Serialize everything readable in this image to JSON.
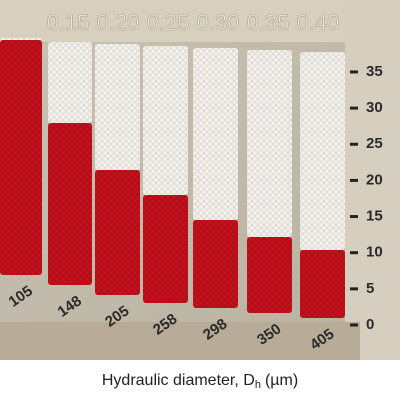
{
  "top_labels": [
    "0.15",
    "0.20",
    "0.25",
    "0.30",
    "0.35",
    "0.40"
  ],
  "diameters": [
    105,
    148,
    205,
    258,
    298,
    350,
    405
  ],
  "scale": [
    0,
    5,
    10,
    15,
    20,
    25,
    30,
    35
  ],
  "caption": {
    "text": "Hydraulic diameter, D",
    "subscript": "h",
    "unit": "(µm)"
  }
}
